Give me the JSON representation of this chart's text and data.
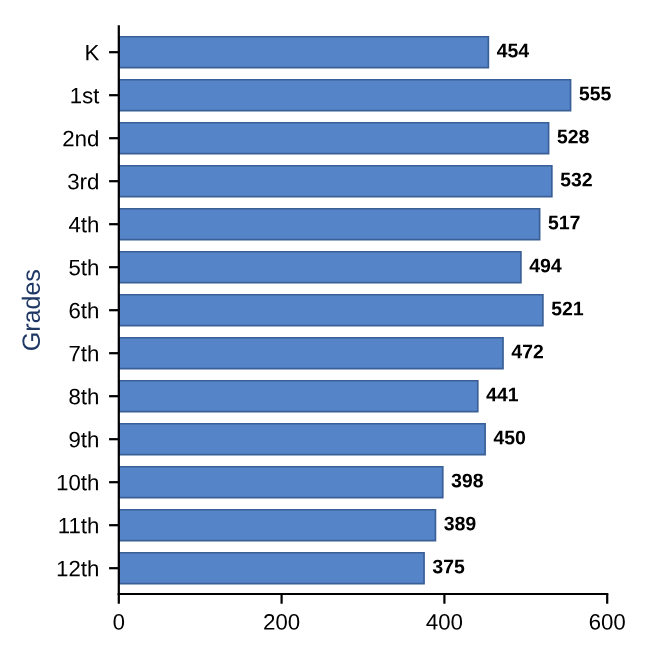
{
  "chart_data": {
    "type": "bar",
    "orientation": "horizontal",
    "ylabel": "Grades",
    "categories": [
      "K",
      "1st",
      "2nd",
      "3rd",
      "4th",
      "5th",
      "6th",
      "7th",
      "8th",
      "9th",
      "10th",
      "11th",
      "12th"
    ],
    "values": [
      454,
      555,
      528,
      532,
      517,
      494,
      521,
      472,
      441,
      450,
      398,
      389,
      375
    ],
    "color": "#5584c8",
    "xlim": [
      0,
      600
    ],
    "xticks": [
      0,
      200,
      400,
      600
    ],
    "data_labels": true,
    "grid": false,
    "legend": false
  }
}
